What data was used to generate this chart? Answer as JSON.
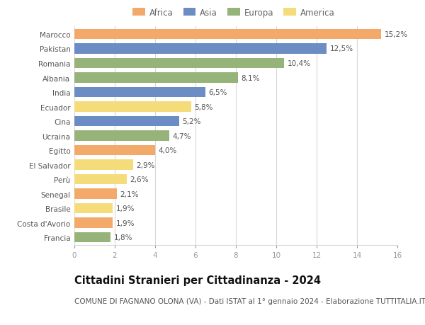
{
  "countries": [
    "Marocco",
    "Pakistan",
    "Romania",
    "Albania",
    "India",
    "Ecuador",
    "Cina",
    "Ucraina",
    "Egitto",
    "El Salvador",
    "Perù",
    "Senegal",
    "Brasile",
    "Costa d'Avorio",
    "Francia"
  ],
  "values": [
    15.2,
    12.5,
    10.4,
    8.1,
    6.5,
    5.8,
    5.2,
    4.7,
    4.0,
    2.9,
    2.6,
    2.1,
    1.9,
    1.9,
    1.8
  ],
  "labels": [
    "15,2%",
    "12,5%",
    "10,4%",
    "8,1%",
    "6,5%",
    "5,8%",
    "5,2%",
    "4,7%",
    "4,0%",
    "2,9%",
    "2,6%",
    "2,1%",
    "1,9%",
    "1,9%",
    "1,8%"
  ],
  "continents": [
    "Africa",
    "Asia",
    "Europa",
    "Europa",
    "Asia",
    "America",
    "Asia",
    "Europa",
    "Africa",
    "America",
    "America",
    "Africa",
    "America",
    "Africa",
    "Europa"
  ],
  "colors": {
    "Africa": "#F2A96A",
    "Asia": "#6B8DC4",
    "Europa": "#96B47A",
    "America": "#F5DC7A"
  },
  "xlim": [
    0,
    16
  ],
  "xticks": [
    0,
    2,
    4,
    6,
    8,
    10,
    12,
    14,
    16
  ],
  "title": "Cittadini Stranieri per Cittadinanza - 2024",
  "subtitle": "COMUNE DI FAGNANO OLONA (VA) - Dati ISTAT al 1° gennaio 2024 - Elaborazione TUTTITALIA.IT",
  "background_color": "#ffffff",
  "grid_color": "#d8d8d8",
  "bar_height": 0.72,
  "title_fontsize": 10.5,
  "subtitle_fontsize": 7.5,
  "label_fontsize": 7.5,
  "tick_fontsize": 7.5,
  "legend_fontsize": 8.5
}
